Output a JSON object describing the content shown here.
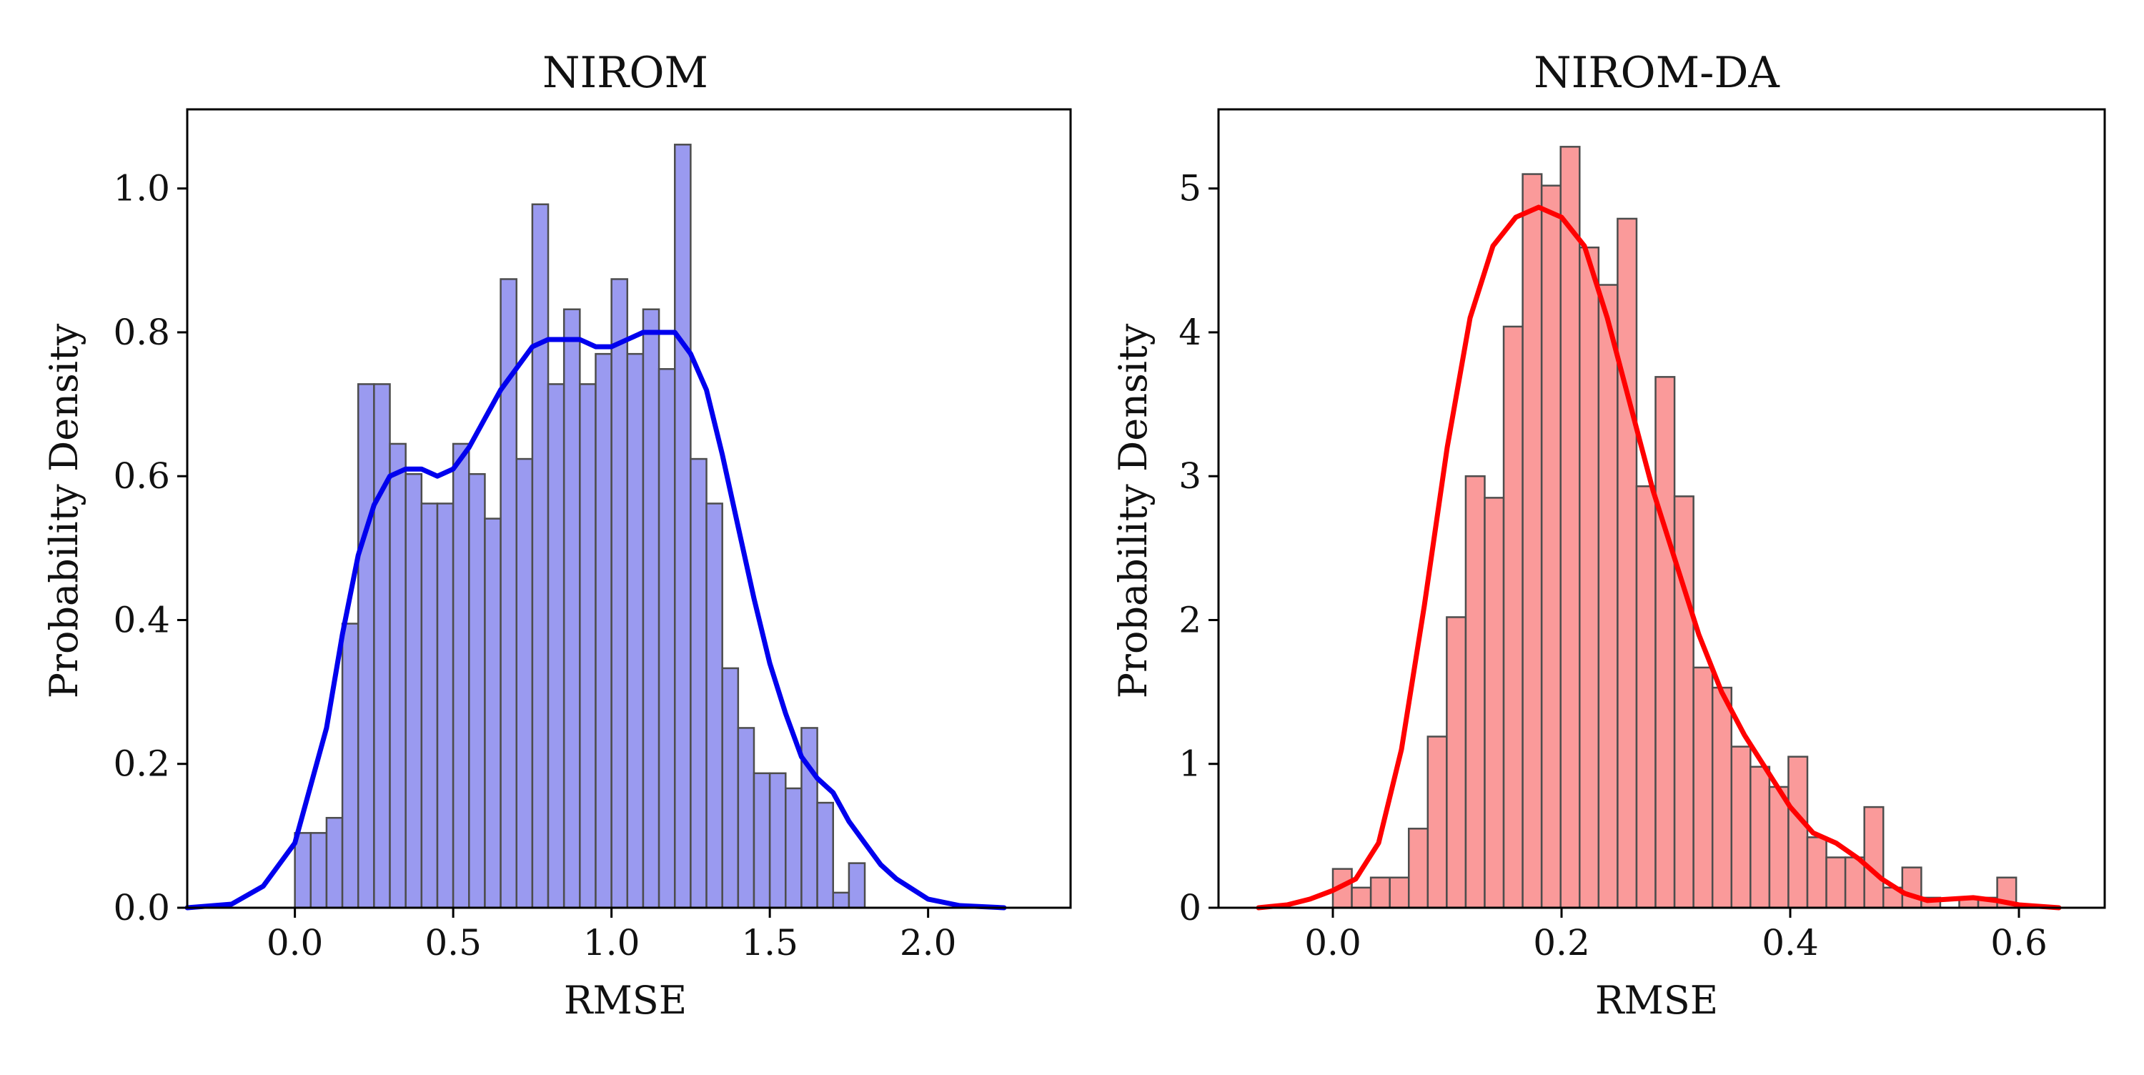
{
  "chart_data": [
    {
      "type": "bar",
      "title": "NIROM",
      "xlabel": "RMSE",
      "ylabel": "Probability Density",
      "xlim": [
        -0.34,
        2.45
      ],
      "ylim": [
        0,
        1.11
      ],
      "xticks": [
        0.0,
        0.5,
        1.0,
        1.5,
        2.0
      ],
      "xtick_labels": [
        "0.0",
        "0.5",
        "1.0",
        "1.5",
        "2.0"
      ],
      "yticks": [
        0.0,
        0.2,
        0.4,
        0.6,
        0.8,
        1.0
      ],
      "ytick_labels": [
        "0.0",
        "0.2",
        "0.4",
        "0.6",
        "0.8",
        "1.0"
      ],
      "bin_start": 0.0,
      "bin_width": 0.05,
      "values": [
        0.104,
        0.104,
        0.125,
        0.395,
        0.728,
        0.728,
        0.645,
        0.603,
        0.562,
        0.562,
        0.645,
        0.603,
        0.541,
        0.874,
        0.624,
        0.978,
        0.728,
        0.832,
        0.728,
        0.77,
        0.874,
        0.77,
        0.832,
        0.749,
        1.061,
        0.624,
        0.562,
        0.333,
        0.25,
        0.187,
        0.187,
        0.166,
        0.25,
        0.146,
        0.021,
        0.062
      ],
      "kde": {
        "x": [
          -0.34,
          -0.2,
          -0.1,
          0.0,
          0.1,
          0.15,
          0.2,
          0.25,
          0.3,
          0.35,
          0.4,
          0.45,
          0.5,
          0.55,
          0.6,
          0.65,
          0.7,
          0.75,
          0.8,
          0.85,
          0.9,
          0.95,
          1.0,
          1.05,
          1.1,
          1.15,
          1.2,
          1.25,
          1.3,
          1.35,
          1.4,
          1.45,
          1.5,
          1.55,
          1.6,
          1.65,
          1.7,
          1.75,
          1.8,
          1.85,
          1.9,
          2.0,
          2.1,
          2.24
        ],
        "y": [
          0.0,
          0.005,
          0.03,
          0.09,
          0.25,
          0.38,
          0.49,
          0.56,
          0.6,
          0.61,
          0.61,
          0.6,
          0.61,
          0.64,
          0.68,
          0.72,
          0.75,
          0.78,
          0.79,
          0.79,
          0.79,
          0.78,
          0.78,
          0.79,
          0.8,
          0.8,
          0.8,
          0.77,
          0.72,
          0.63,
          0.53,
          0.43,
          0.34,
          0.27,
          0.21,
          0.18,
          0.16,
          0.12,
          0.09,
          0.06,
          0.04,
          0.012,
          0.003,
          0.0
        ]
      },
      "bar_color": "#9a9af0",
      "line_color": "#0000ee"
    },
    {
      "type": "bar",
      "title": "NIROM-DA",
      "xlabel": "RMSE",
      "ylabel": "Probability Density",
      "xlim": [
        -0.1,
        0.675
      ],
      "ylim": [
        0,
        5.55
      ],
      "xticks": [
        0.0,
        0.2,
        0.4,
        0.6
      ],
      "xtick_labels": [
        "0.0",
        "0.2",
        "0.4",
        "0.6"
      ],
      "yticks": [
        0,
        1,
        2,
        3,
        4,
        5
      ],
      "ytick_labels": [
        "0",
        "1",
        "2",
        "3",
        "4",
        "5"
      ],
      "bin_start": 0.0,
      "bin_width": 0.0166,
      "values": [
        0.27,
        0.14,
        0.21,
        0.21,
        0.55,
        1.19,
        2.02,
        3.0,
        2.85,
        4.04,
        5.1,
        5.02,
        5.29,
        4.59,
        4.33,
        4.79,
        2.93,
        3.69,
        2.86,
        1.67,
        1.53,
        1.12,
        0.98,
        0.84,
        1.05,
        0.49,
        0.35,
        0.35,
        0.7,
        0.14,
        0.28,
        0.07,
        0.0,
        0.07,
        0.07,
        0.21
      ],
      "kde": {
        "x": [
          -0.065,
          -0.04,
          -0.02,
          0.0,
          0.02,
          0.04,
          0.06,
          0.08,
          0.1,
          0.12,
          0.14,
          0.16,
          0.18,
          0.2,
          0.22,
          0.24,
          0.26,
          0.28,
          0.3,
          0.32,
          0.34,
          0.36,
          0.38,
          0.4,
          0.42,
          0.44,
          0.46,
          0.48,
          0.5,
          0.52,
          0.54,
          0.56,
          0.58,
          0.6,
          0.635
        ],
        "y": [
          0.0,
          0.02,
          0.06,
          0.12,
          0.2,
          0.45,
          1.1,
          2.1,
          3.2,
          4.1,
          4.6,
          4.8,
          4.87,
          4.8,
          4.6,
          4.1,
          3.5,
          2.9,
          2.4,
          1.9,
          1.5,
          1.2,
          0.95,
          0.7,
          0.52,
          0.45,
          0.34,
          0.2,
          0.1,
          0.05,
          0.06,
          0.07,
          0.05,
          0.02,
          0.0
        ]
      },
      "bar_color": "#fa9a9a",
      "line_color": "#ff0000"
    }
  ]
}
